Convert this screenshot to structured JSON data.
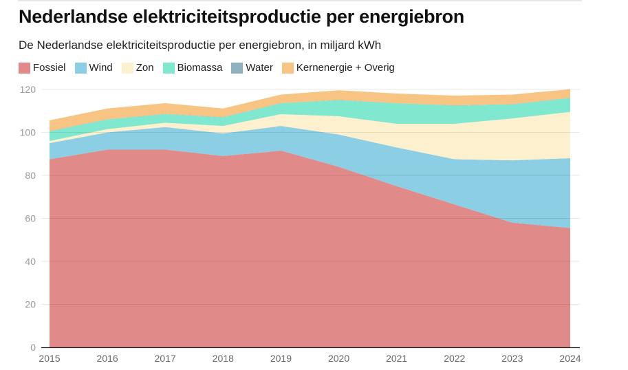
{
  "title": "Nederlandse elektriciteitsproductie per energiebron",
  "subtitle": "De Nederlandse elektriciteitsproductie per energiebron, in miljard kWh",
  "chart_data": {
    "type": "area",
    "stacked": true,
    "title": "Nederlandse elektriciteitsproductie per energiebron",
    "subtitle": "De Nederlandse elektriciteitsproductie per energiebron, in miljard kWh",
    "xlabel": "",
    "ylabel": "",
    "x": [
      "2015",
      "2016",
      "2017",
      "2018",
      "2019",
      "2020",
      "2021",
      "2022",
      "2023",
      "2024"
    ],
    "ylim": [
      0,
      120
    ],
    "yticks": [
      0,
      20,
      40,
      60,
      80,
      100,
      120
    ],
    "grid": true,
    "legend_position": "top-left",
    "series": [
      {
        "name": "Fossiel",
        "color": "#e08b8a",
        "values": [
          87.5,
          92,
          92,
          89,
          91.5,
          84,
          75,
          66.5,
          58,
          55.5
        ]
      },
      {
        "name": "Wind",
        "color": "#8ccee3",
        "values": [
          7.5,
          8,
          10.5,
          10.5,
          11.5,
          15,
          18,
          21,
          29,
          32.5
        ]
      },
      {
        "name": "Zon",
        "color": "#fdf0cf",
        "values": [
          1,
          1.5,
          2,
          3.5,
          5.5,
          8.5,
          11,
          16.5,
          19.5,
          21.5
        ]
      },
      {
        "name": "Biomassa",
        "color": "#7fe8cf",
        "values": [
          4.5,
          4.5,
          4,
          4,
          5,
          7.5,
          9.5,
          8.5,
          6.5,
          6.5
        ]
      },
      {
        "name": "Water",
        "color": "#8fb0bd",
        "values": [
          0.1,
          0.1,
          0.1,
          0.1,
          0.1,
          0.1,
          0.1,
          0.1,
          0.1,
          0.1
        ]
      },
      {
        "name": "Kernenergie + Overig",
        "color": "#f8c484",
        "values": [
          5,
          5,
          5,
          4,
          4,
          4.5,
          4.5,
          4.5,
          4.5,
          4
        ]
      }
    ]
  }
}
